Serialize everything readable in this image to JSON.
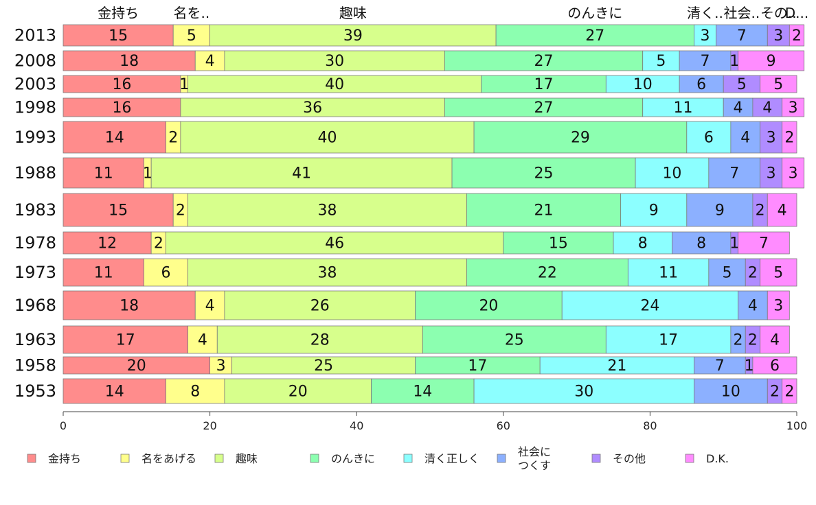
{
  "chart_data": {
    "type": "bar",
    "orientation": "horizontal-stacked-percent",
    "xlim": [
      0,
      100
    ],
    "xticks": [
      0,
      20,
      40,
      60,
      80,
      100
    ],
    "grid": false,
    "legend_position": "bottom",
    "series": [
      {
        "name": "金持ち",
        "top_label": "金持ち",
        "color": "#FF8C8C"
      },
      {
        "name": "名をあげる",
        "top_label": "名を..",
        "color": "#FFFF8C"
      },
      {
        "name": "趣味",
        "top_label": "趣味",
        "color": "#D7FF8C"
      },
      {
        "name": "のんきに",
        "top_label": "のんきに",
        "color": "#8CFFB0"
      },
      {
        "name": "清く正しく",
        "top_label": "清く..",
        "color": "#8CFFFF"
      },
      {
        "name": "社会に\nつくす",
        "top_label": "社会..",
        "color": "#8CB0FF"
      },
      {
        "name": "その他",
        "top_label": "その..",
        "color": "#B08CFF"
      },
      {
        "name": "D.K.",
        "top_label": "D...",
        "color": "#FF8CFF"
      }
    ],
    "rows": [
      {
        "year": "2013",
        "values": [
          15,
          5,
          39,
          27,
          3,
          7,
          3,
          2
        ]
      },
      {
        "year": "2008",
        "values": [
          18,
          4,
          30,
          27,
          5,
          7,
          1,
          9
        ]
      },
      {
        "year": "2003",
        "values": [
          16,
          1,
          40,
          17,
          10,
          6,
          5,
          5
        ]
      },
      {
        "year": "1998",
        "values": [
          16,
          0,
          36,
          27,
          11,
          4,
          4,
          3
        ]
      },
      {
        "year": "1993",
        "values": [
          14,
          2,
          40,
          29,
          6,
          4,
          3,
          2
        ]
      },
      {
        "year": "1988",
        "values": [
          11,
          1,
          41,
          25,
          10,
          7,
          3,
          3
        ]
      },
      {
        "year": "1983",
        "values": [
          15,
          2,
          38,
          21,
          9,
          9,
          2,
          4
        ]
      },
      {
        "year": "1978",
        "values": [
          12,
          2,
          46,
          15,
          8,
          8,
          1,
          7
        ]
      },
      {
        "year": "1973",
        "values": [
          11,
          6,
          38,
          22,
          11,
          5,
          2,
          5
        ]
      },
      {
        "year": "1968",
        "values": [
          18,
          4,
          26,
          20,
          24,
          4,
          0,
          3
        ]
      },
      {
        "year": "1963",
        "values": [
          17,
          4,
          28,
          25,
          17,
          2,
          2,
          4
        ]
      },
      {
        "year": "1958",
        "values": [
          20,
          3,
          25,
          17,
          21,
          7,
          1,
          6
        ]
      },
      {
        "year": "1953",
        "values": [
          14,
          8,
          20,
          14,
          30,
          10,
          2,
          2
        ]
      }
    ]
  }
}
